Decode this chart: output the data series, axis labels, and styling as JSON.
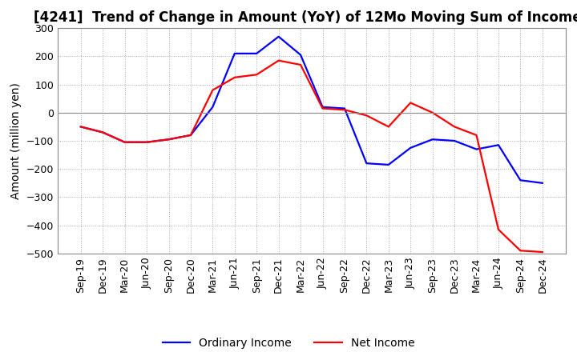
{
  "title": "[4241]  Trend of Change in Amount (YoY) of 12Mo Moving Sum of Incomes",
  "ylabel": "Amount (million yen)",
  "ylim": [
    -500,
    300
  ],
  "yticks": [
    -500,
    -400,
    -300,
    -200,
    -100,
    0,
    100,
    200,
    300
  ],
  "x_labels": [
    "Sep-19",
    "Dec-19",
    "Mar-20",
    "Jun-20",
    "Sep-20",
    "Dec-20",
    "Mar-21",
    "Jun-21",
    "Sep-21",
    "Dec-21",
    "Mar-22",
    "Jun-22",
    "Sep-22",
    "Dec-22",
    "Mar-23",
    "Jun-23",
    "Sep-23",
    "Dec-23",
    "Mar-24",
    "Jun-24",
    "Sep-24",
    "Dec-24"
  ],
  "ordinary_income": [
    -50,
    -70,
    -105,
    -105,
    -95,
    -80,
    20,
    210,
    210,
    270,
    205,
    20,
    15,
    -180,
    -185,
    -125,
    -95,
    -100,
    -130,
    -115,
    -240,
    -250
  ],
  "net_income": [
    -50,
    -70,
    -105,
    -105,
    -95,
    -80,
    80,
    125,
    135,
    185,
    170,
    15,
    10,
    -10,
    -50,
    35,
    0,
    -50,
    -80,
    -415,
    -490,
    -495
  ],
  "ordinary_income_color": "#0000FF",
  "net_income_color": "#FF0000",
  "line_width": 1.6,
  "background_color": "#FFFFFF",
  "grid_color": "#AAAAAA",
  "title_fontsize": 12,
  "label_fontsize": 10,
  "tick_fontsize": 9,
  "legend_fontsize": 10
}
